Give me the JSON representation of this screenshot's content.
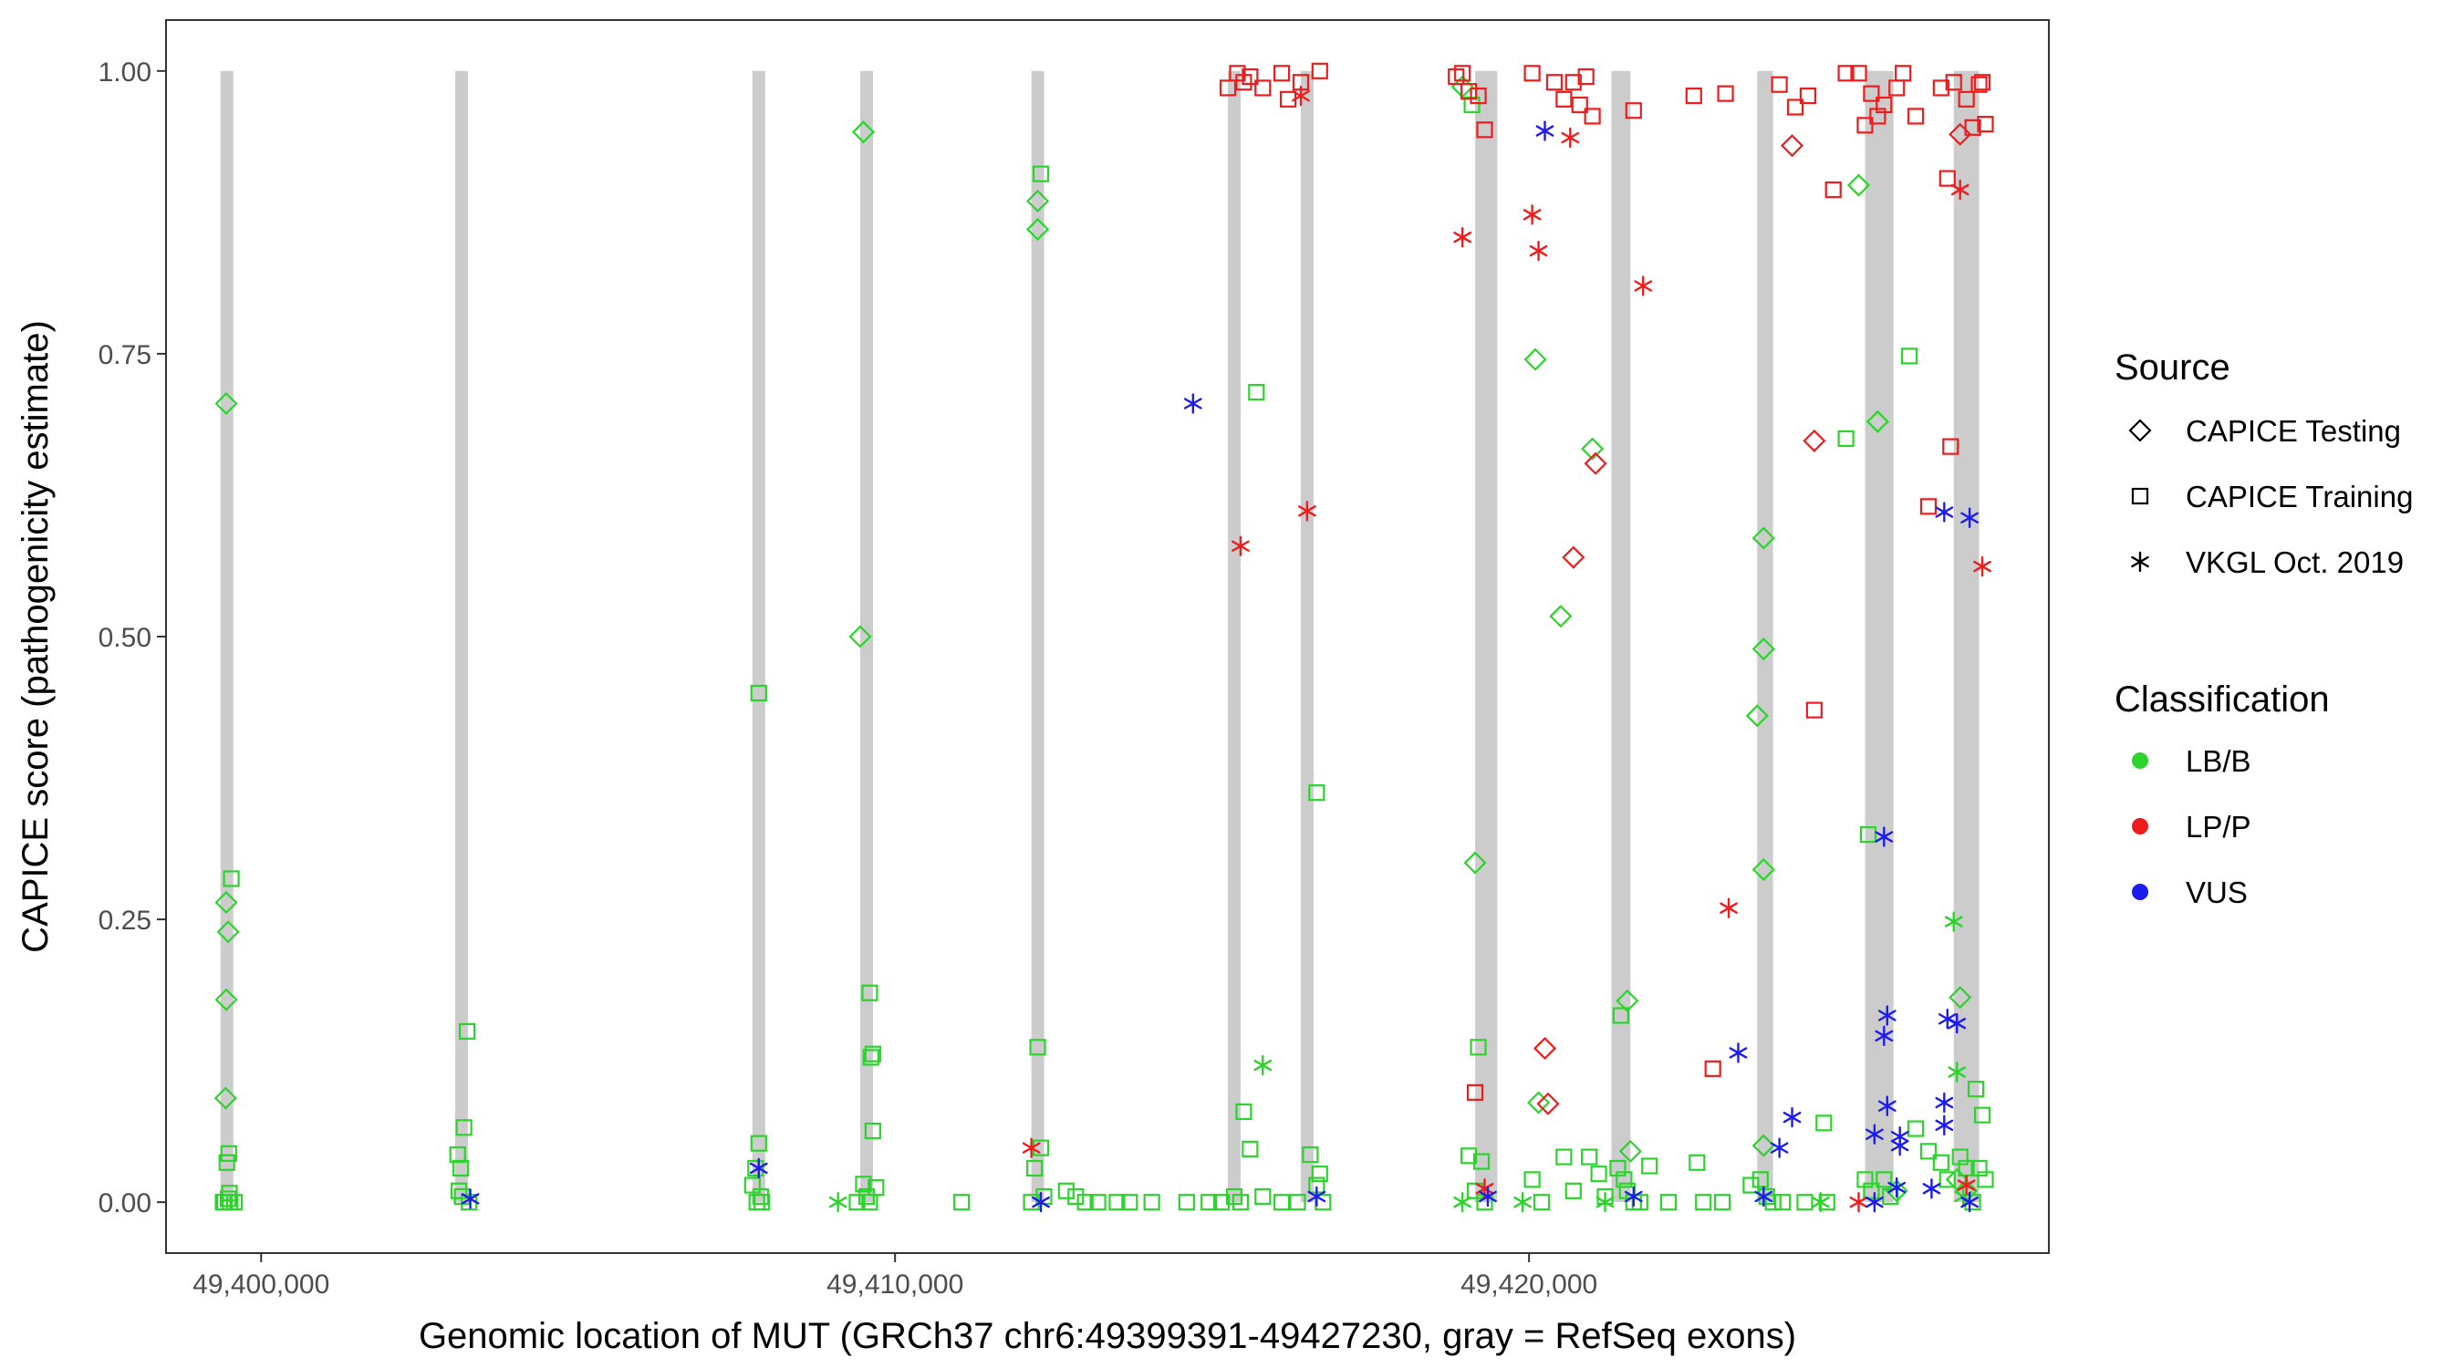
{
  "chart_data": {
    "type": "scatter",
    "title": "",
    "xlabel": "Genomic location of MUT (GRCh37 chr6:49399391-49427230, gray = RefSeq exons)",
    "ylabel": "CAPICE score (pathogenicity estimate)",
    "xlim": [
      49398500,
      49428200
    ],
    "ylim": [
      -0.045,
      1.045
    ],
    "x_ticks": [
      49400000,
      49410000,
      49420000
    ],
    "x_tick_labels": [
      "49,400,000",
      "49,410,000",
      "49,420,000"
    ],
    "y_ticks": [
      0,
      0.25,
      0.5,
      0.75,
      1.0
    ],
    "y_tick_labels": [
      "0.00",
      "0.25",
      "0.50",
      "0.75",
      "1.00"
    ],
    "grid": false,
    "legend_position": "right",
    "exons": [
      [
        49399360,
        49399560
      ],
      [
        49403060,
        49403250
      ],
      [
        49407750,
        49407950
      ],
      [
        49409450,
        49409650
      ],
      [
        49412150,
        49412350
      ],
      [
        49415250,
        49415450
      ],
      [
        49416400,
        49416600
      ],
      [
        49419150,
        49419500
      ],
      [
        49421300,
        49421600
      ],
      [
        49423600,
        49423850
      ],
      [
        49425300,
        49425750
      ],
      [
        49426700,
        49427100
      ]
    ],
    "legend": {
      "source_title": "Source",
      "source_entries": [
        {
          "label": "CAPICE Testing",
          "shape": "diamond"
        },
        {
          "label": "CAPICE Training",
          "shape": "square"
        },
        {
          "label": "VKGL Oct. 2019",
          "shape": "asterisk"
        }
      ],
      "class_title": "Classification",
      "class_entries": [
        {
          "label": "LB/B",
          "color": "#2bd42b"
        },
        {
          "label": "LP/P",
          "color": "#ee1c1c"
        },
        {
          "label": "VUS",
          "color": "#1c1cee"
        }
      ]
    },
    "colors": {
      "LB/B": "#2bd42b",
      "LP/P": "#ee1c1c",
      "VUS": "#1c1cee",
      "exon": "#cccccc"
    },
    "series": [
      {
        "name": "CAPICE Testing / LB/B",
        "source": "CAPICE Testing",
        "classification": "LB/B",
        "points": [
          [
            49399450,
            0.706
          ],
          [
            49399450,
            0.265
          ],
          [
            49399480,
            0.239
          ],
          [
            49399450,
            0.179
          ],
          [
            49399440,
            0.092
          ],
          [
            49409500,
            0.946
          ],
          [
            49409450,
            0.5
          ],
          [
            49412250,
            0.885
          ],
          [
            49412250,
            0.86
          ],
          [
            49418950,
            0.986
          ],
          [
            49419150,
            0.3
          ],
          [
            49420100,
            0.745
          ],
          [
            49420150,
            0.088
          ],
          [
            49421000,
            0.666
          ],
          [
            49420500,
            0.518
          ],
          [
            49421550,
            0.178
          ],
          [
            49421600,
            0.045
          ],
          [
            49423700,
            0.587
          ],
          [
            49423700,
            0.489
          ],
          [
            49423600,
            0.43
          ],
          [
            49423700,
            0.294
          ],
          [
            49423700,
            0.05
          ],
          [
            49425200,
            0.899
          ],
          [
            49425500,
            0.69
          ],
          [
            49426800,
            0.181
          ],
          [
            49426750,
            0.02
          ],
          [
            49425800,
            0.01
          ],
          [
            49426900,
            0.01
          ]
        ]
      },
      {
        "name": "CAPICE Testing / LP/P",
        "source": "CAPICE Testing",
        "classification": "LP/P",
        "points": [
          [
            49424150,
            0.934
          ],
          [
            49424500,
            0.673
          ],
          [
            49421050,
            0.653
          ],
          [
            49420700,
            0.57
          ],
          [
            49420250,
            0.136
          ],
          [
            49420300,
            0.087
          ],
          [
            49426800,
            0.944
          ]
        ]
      },
      {
        "name": "CAPICE Training / LB/B",
        "source": "CAPICE Training",
        "classification": "LB/B",
        "points": [
          [
            49399530,
            0.286
          ],
          [
            49399490,
            0.043
          ],
          [
            49399460,
            0.035
          ],
          [
            49399500,
            0.008
          ],
          [
            49399480,
            0.003
          ],
          [
            49399420,
            0.0
          ],
          [
            49399580,
            0.0
          ],
          [
            49399400,
            0.0
          ],
          [
            49399510,
            0.0
          ],
          [
            49403250,
            0.151
          ],
          [
            49403200,
            0.066
          ],
          [
            49403100,
            0.042
          ],
          [
            49403150,
            0.03
          ],
          [
            49403120,
            0.01
          ],
          [
            49403170,
            0.005
          ],
          [
            49403280,
            0.0
          ],
          [
            49407850,
            0.45
          ],
          [
            49407850,
            0.052
          ],
          [
            49407800,
            0.03
          ],
          [
            49407750,
            0.015
          ],
          [
            49407880,
            0.005
          ],
          [
            49407820,
            0.0
          ],
          [
            49407900,
            0.0
          ],
          [
            49409600,
            0.185
          ],
          [
            49409650,
            0.131
          ],
          [
            49409620,
            0.128
          ],
          [
            49409650,
            0.063
          ],
          [
            49409500,
            0.016
          ],
          [
            49409700,
            0.013
          ],
          [
            49409550,
            0.005
          ],
          [
            49409400,
            0.0
          ],
          [
            49409600,
            0.0
          ],
          [
            49411050,
            0.0
          ],
          [
            49412300,
            0.909
          ],
          [
            49412250,
            0.137
          ],
          [
            49412300,
            0.048
          ],
          [
            49412200,
            0.03
          ],
          [
            49412350,
            0.005
          ],
          [
            49412150,
            0.0
          ],
          [
            49412700,
            0.01
          ],
          [
            49412850,
            0.005
          ],
          [
            49413000,
            0.0
          ],
          [
            49413200,
            0.0
          ],
          [
            49413500,
            0.0
          ],
          [
            49413700,
            0.0
          ],
          [
            49414050,
            0.0
          ],
          [
            49414600,
            0.0
          ],
          [
            49414950,
            0.0
          ],
          [
            49415150,
            0.0
          ],
          [
            49415350,
            0.005
          ],
          [
            49415450,
            0.0
          ],
          [
            49415500,
            0.08
          ],
          [
            49415600,
            0.047
          ],
          [
            49415700,
            0.716
          ],
          [
            49415800,
            0.005
          ],
          [
            49416100,
            0.0
          ],
          [
            49416350,
            0.0
          ],
          [
            49416650,
            0.362
          ],
          [
            49416550,
            0.042
          ],
          [
            49416700,
            0.025
          ],
          [
            49416650,
            0.015
          ],
          [
            49416750,
            0.0
          ],
          [
            49419100,
            0.97
          ],
          [
            49419200,
            0.137
          ],
          [
            49419050,
            0.041
          ],
          [
            49419250,
            0.036
          ],
          [
            49419150,
            0.01
          ],
          [
            49419300,
            0.0
          ],
          [
            49420050,
            0.02
          ],
          [
            49420200,
            0.0
          ],
          [
            49420550,
            0.04
          ],
          [
            49420700,
            0.01
          ],
          [
            49420950,
            0.04
          ],
          [
            49421100,
            0.025
          ],
          [
            49421200,
            0.005
          ],
          [
            49421450,
            0.165
          ],
          [
            49421400,
            0.03
          ],
          [
            49421500,
            0.02
          ],
          [
            49421550,
            0.01
          ],
          [
            49421650,
            0.0
          ],
          [
            49421750,
            0.0
          ],
          [
            49421900,
            0.032
          ],
          [
            49422200,
            0.0
          ],
          [
            49422650,
            0.035
          ],
          [
            49422750,
            0.0
          ],
          [
            49423050,
            0.0
          ],
          [
            49423500,
            0.015
          ],
          [
            49423650,
            0.02
          ],
          [
            49423750,
            0.005
          ],
          [
            49423850,
            0.0
          ],
          [
            49424000,
            0.0
          ],
          [
            49424350,
            0.0
          ],
          [
            49424650,
            0.07
          ],
          [
            49424700,
            0.0
          ],
          [
            49425000,
            0.675
          ],
          [
            49425350,
            0.325
          ],
          [
            49425300,
            0.02
          ],
          [
            49425400,
            0.01
          ],
          [
            49425600,
            0.02
          ],
          [
            49425700,
            0.005
          ],
          [
            49426000,
            0.748
          ],
          [
            49426100,
            0.065
          ],
          [
            49426300,
            0.045
          ],
          [
            49426500,
            0.035
          ],
          [
            49426600,
            0.02
          ],
          [
            49426800,
            0.04
          ],
          [
            49426900,
            0.03
          ],
          [
            49427050,
            0.1
          ],
          [
            49427150,
            0.077
          ],
          [
            49427100,
            0.03
          ],
          [
            49427200,
            0.02
          ],
          [
            49427000,
            0.0
          ]
        ]
      },
      {
        "name": "CAPICE Training / LP/P",
        "source": "CAPICE Training",
        "classification": "LP/P",
        "points": [
          [
            49415250,
            0.985
          ],
          [
            49415500,
            0.99
          ],
          [
            49415400,
            0.998
          ],
          [
            49415600,
            0.995
          ],
          [
            49415800,
            0.985
          ],
          [
            49416100,
            0.998
          ],
          [
            49416400,
            0.99
          ],
          [
            49416700,
            1.0
          ],
          [
            49416200,
            0.975
          ],
          [
            49418850,
            0.995
          ],
          [
            49418950,
            0.998
          ],
          [
            49419050,
            0.982
          ],
          [
            49419200,
            0.978
          ],
          [
            49419300,
            0.948
          ],
          [
            49419150,
            0.097
          ],
          [
            49420050,
            0.998
          ],
          [
            49420400,
            0.99
          ],
          [
            49420550,
            0.975
          ],
          [
            49420800,
            0.97
          ],
          [
            49421000,
            0.96
          ],
          [
            49420700,
            0.99
          ],
          [
            49420900,
            0.995
          ],
          [
            49421650,
            0.965
          ],
          [
            49422600,
            0.978
          ],
          [
            49423100,
            0.98
          ],
          [
            49422900,
            0.118
          ],
          [
            49423950,
            0.988
          ],
          [
            49424200,
            0.968
          ],
          [
            49424400,
            0.978
          ],
          [
            49424500,
            0.435
          ],
          [
            49424800,
            0.895
          ],
          [
            49425000,
            0.998
          ],
          [
            49425200,
            0.998
          ],
          [
            49425300,
            0.952
          ],
          [
            49425400,
            0.98
          ],
          [
            49425500,
            0.96
          ],
          [
            49425600,
            0.97
          ],
          [
            49425800,
            0.985
          ],
          [
            49426100,
            0.96
          ],
          [
            49426300,
            0.615
          ],
          [
            49426600,
            0.905
          ],
          [
            49426650,
            0.668
          ],
          [
            49426700,
            0.99
          ],
          [
            49426900,
            0.975
          ],
          [
            49427000,
            0.95
          ],
          [
            49427100,
            0.988
          ],
          [
            49427150,
            0.99
          ],
          [
            49427200,
            0.953
          ],
          [
            49425900,
            0.998
          ],
          [
            49426500,
            0.985
          ]
        ]
      },
      {
        "name": "VKGL Oct. 2019 / LB/B",
        "source": "VKGL Oct. 2019",
        "classification": "LB/B",
        "points": [
          [
            49409100,
            0.0
          ],
          [
            49415800,
            0.121
          ],
          [
            49418950,
            0.0
          ],
          [
            49419900,
            0.0
          ],
          [
            49421200,
            0.0
          ],
          [
            49424600,
            0.0
          ],
          [
            49426700,
            0.248
          ],
          [
            49426750,
            0.115
          ],
          [
            49426850,
            0.005
          ]
        ]
      },
      {
        "name": "VKGL Oct. 2019 / LP/P",
        "source": "VKGL Oct. 2019",
        "classification": "LP/P",
        "points": [
          [
            49418950,
            0.853
          ],
          [
            49420050,
            0.873
          ],
          [
            49420150,
            0.841
          ],
          [
            49420650,
            0.941
          ],
          [
            49421800,
            0.81
          ],
          [
            49415450,
            0.58
          ],
          [
            49416500,
            0.611
          ],
          [
            49412150,
            0.048
          ],
          [
            49416400,
            0.978
          ],
          [
            49423150,
            0.26
          ],
          [
            49426800,
            0.895
          ],
          [
            49427150,
            0.562
          ],
          [
            49426900,
            0.015
          ],
          [
            49425200,
            0.0
          ],
          [
            49419300,
            0.012
          ]
        ]
      },
      {
        "name": "VKGL Oct. 2019 / VUS",
        "source": "VKGL Oct. 2019",
        "classification": "VUS",
        "points": [
          [
            49420250,
            0.947
          ],
          [
            49414700,
            0.706
          ],
          [
            49426550,
            0.61
          ],
          [
            49426950,
            0.605
          ],
          [
            49425600,
            0.323
          ],
          [
            49423300,
            0.132
          ],
          [
            49425650,
            0.165
          ],
          [
            49425600,
            0.147
          ],
          [
            49426600,
            0.162
          ],
          [
            49426750,
            0.158
          ],
          [
            49424150,
            0.075
          ],
          [
            49423950,
            0.048
          ],
          [
            49425650,
            0.085
          ],
          [
            49426550,
            0.088
          ],
          [
            49425450,
            0.06
          ],
          [
            49425850,
            0.058
          ],
          [
            49426550,
            0.068
          ],
          [
            49425850,
            0.05
          ],
          [
            49425800,
            0.013
          ],
          [
            49426350,
            0.012
          ],
          [
            49407850,
            0.03
          ],
          [
            49403300,
            0.003
          ],
          [
            49412300,
            0.0
          ],
          [
            49416650,
            0.005
          ],
          [
            49419350,
            0.005
          ],
          [
            49421650,
            0.005
          ],
          [
            49423700,
            0.005
          ],
          [
            49426950,
            0.0
          ],
          [
            49425450,
            0.0
          ]
        ]
      }
    ]
  }
}
